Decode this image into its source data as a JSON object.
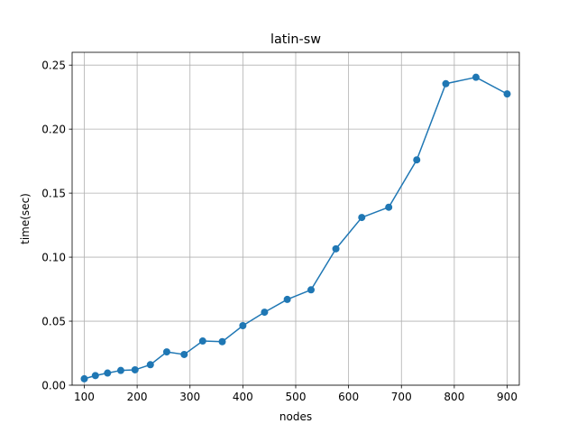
{
  "chart_data": {
    "type": "line",
    "title": "latin-sw",
    "xlabel": "nodes",
    "ylabel": "time(sec)",
    "xlim": [
      77,
      923
    ],
    "ylim": [
      0,
      0.26
    ],
    "xticks": [
      100,
      200,
      300,
      400,
      500,
      600,
      700,
      800,
      900
    ],
    "yticks": [
      0.0,
      0.05,
      0.1,
      0.15,
      0.2,
      0.25
    ],
    "xtick_labels": [
      "100",
      "200",
      "300",
      "400",
      "500",
      "600",
      "700",
      "800",
      "900"
    ],
    "ytick_labels": [
      "0.00",
      "0.05",
      "0.10",
      "0.15",
      "0.20",
      "0.25"
    ],
    "grid": true,
    "series": [
      {
        "color": "#1f77b4",
        "marker": "circle",
        "x": [
          100,
          121,
          144,
          169,
          196,
          225,
          256,
          289,
          324,
          361,
          400,
          441,
          484,
          529,
          576,
          625,
          676,
          729,
          784,
          841,
          900
        ],
        "y": [
          0.005,
          0.0075,
          0.0095,
          0.0115,
          0.012,
          0.016,
          0.026,
          0.024,
          0.0345,
          0.034,
          0.0465,
          0.057,
          0.067,
          0.0745,
          0.1065,
          0.131,
          0.139,
          0.176,
          0.2355,
          0.2405,
          0.2275
        ]
      }
    ]
  }
}
